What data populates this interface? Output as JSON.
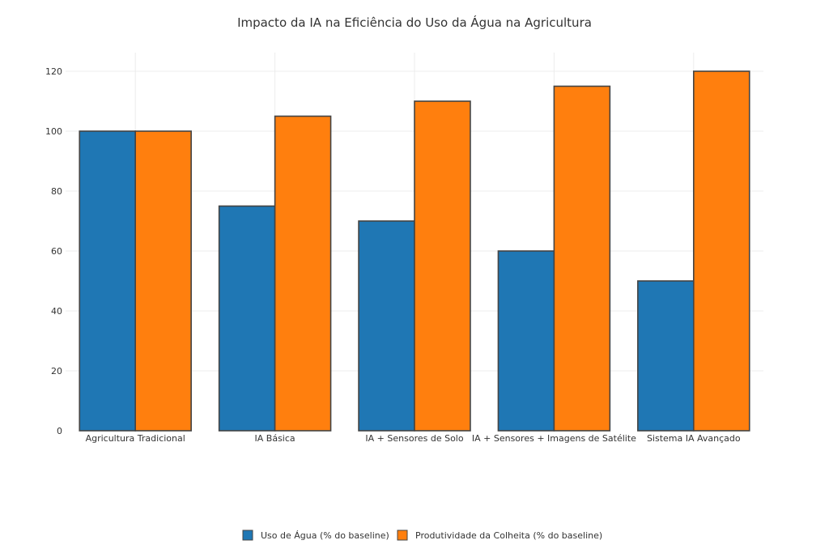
{
  "chart_data": {
    "type": "bar",
    "title": "Impacto da IA na Eficiência do Uso da Água na Agricultura",
    "categories": [
      "Agricultura Tradicional",
      "IA Básica",
      "IA + Sensores de Solo",
      "IA + Sensores + Imagens de Satélite",
      "Sistema IA Avançado"
    ],
    "series": [
      {
        "name": "Uso de Água (% do baseline)",
        "color": "#1f77b4",
        "values": [
          100,
          75,
          70,
          60,
          50
        ]
      },
      {
        "name": "Produtividade da Colheita (% do baseline)",
        "color": "#ff7f0e",
        "values": [
          100,
          105,
          110,
          115,
          120
        ]
      }
    ],
    "yticks": [
      0,
      20,
      40,
      60,
      80,
      100,
      120
    ],
    "ylim": [
      0,
      120
    ],
    "xlabel": "",
    "ylabel": "",
    "grid": true,
    "legend": "bottom-center"
  }
}
